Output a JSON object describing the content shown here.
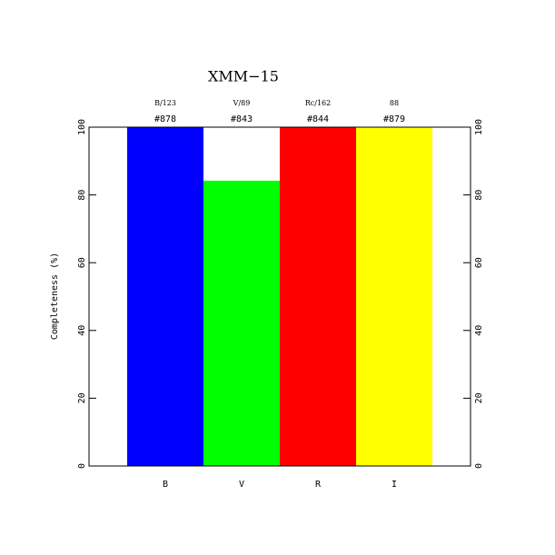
{
  "chart_data": {
    "type": "bar",
    "title": "XMM−15",
    "ylabel": "Completeness (%)",
    "categories": [
      "B",
      "V",
      "R",
      "I"
    ],
    "values": [
      100,
      84.2,
      100,
      100
    ],
    "colors": [
      "#0000ff",
      "#00ff00",
      "#ff0000",
      "#ffff00"
    ],
    "filters": [
      "B/123",
      "V/89",
      "Rc/162",
      "88"
    ],
    "counts": [
      "#878",
      "#843",
      "#844",
      "#879"
    ],
    "ylim": [
      0,
      100
    ],
    "yticks": [
      0,
      20,
      40,
      60,
      80,
      100
    ]
  }
}
